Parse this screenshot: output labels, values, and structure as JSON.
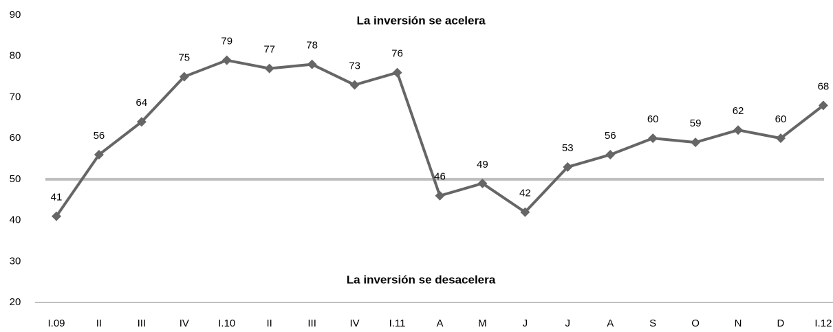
{
  "chart_data": {
    "type": "line",
    "annotations": [
      "La inversión se acelera",
      "La inversión se desacelera"
    ],
    "categories": [
      "I.09",
      "II",
      "III",
      "IV",
      "I.10",
      "II",
      "III",
      "IV",
      "I.11",
      "A",
      "M",
      "J",
      "J",
      "A",
      "S",
      "O",
      "N",
      "D",
      "I.12"
    ],
    "series": [
      {
        "color": "#666666",
        "values": [
          41,
          56,
          64,
          75,
          79,
          77,
          78,
          73,
          76,
          46,
          49,
          42,
          53,
          56,
          60,
          59,
          62,
          60,
          68
        ]
      }
    ],
    "reference_line": 50,
    "reference_color": "#bfbfbf",
    "ylim": [
      20,
      90
    ],
    "yticks": [
      20,
      30,
      40,
      50,
      60,
      70,
      80,
      90
    ]
  }
}
